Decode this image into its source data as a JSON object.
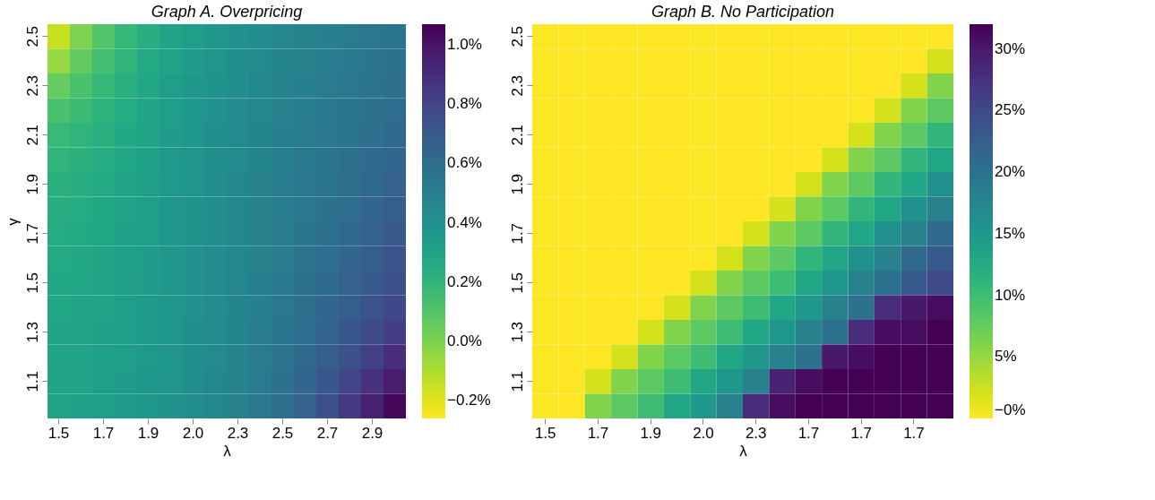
{
  "chart_data": [
    {
      "type": "heatmap",
      "title": "Graph A. Overpricing",
      "xlabel": "λ",
      "ylabel": "γ",
      "categories": [
        "1.5",
        null,
        "1.7",
        null,
        "1.9",
        null,
        "2.0",
        null,
        "2.3",
        null,
        "2.5",
        null,
        "2.7",
        null,
        "2.9",
        null
      ],
      "y_categories": [
        "2.5",
        null,
        "2.3",
        null,
        "2.1",
        null,
        "1.9",
        null,
        "1.7",
        null,
        "1.5",
        null,
        "1.3",
        null,
        "1.1",
        null
      ],
      "clim": [
        -0.26,
        1.07
      ],
      "cticks": [
        {
          "value": -0.2,
          "label": "−0.2%"
        },
        {
          "value": 0.0,
          "label": "0.0%"
        },
        {
          "value": 0.2,
          "label": "0.2%"
        },
        {
          "value": 0.4,
          "label": "0.4%"
        },
        {
          "value": 0.6,
          "label": "0.6%"
        },
        {
          "value": 0.8,
          "label": "0.8%"
        },
        {
          "value": 1.0,
          "label": "1.0%"
        }
      ],
      "cells": [
        [
          -0.15,
          0.0,
          0.1,
          0.18,
          0.24,
          0.29,
          0.33,
          0.37,
          0.4,
          0.43,
          0.46,
          0.48,
          0.5,
          0.52,
          0.54,
          0.56
        ],
        [
          -0.05,
          0.06,
          0.14,
          0.2,
          0.26,
          0.3,
          0.34,
          0.38,
          0.41,
          0.44,
          0.47,
          0.49,
          0.51,
          0.53,
          0.55,
          0.57
        ],
        [
          0.05,
          0.12,
          0.18,
          0.23,
          0.28,
          0.32,
          0.36,
          0.39,
          0.42,
          0.45,
          0.48,
          0.5,
          0.52,
          0.54,
          0.56,
          0.58
        ],
        [
          0.12,
          0.16,
          0.21,
          0.25,
          0.29,
          0.33,
          0.37,
          0.4,
          0.43,
          0.46,
          0.49,
          0.51,
          0.53,
          0.55,
          0.57,
          0.6
        ],
        [
          0.17,
          0.2,
          0.23,
          0.27,
          0.3,
          0.34,
          0.37,
          0.41,
          0.44,
          0.47,
          0.5,
          0.52,
          0.54,
          0.56,
          0.59,
          0.62
        ],
        [
          0.2,
          0.22,
          0.25,
          0.28,
          0.31,
          0.35,
          0.38,
          0.41,
          0.44,
          0.47,
          0.5,
          0.53,
          0.55,
          0.58,
          0.61,
          0.64
        ],
        [
          0.22,
          0.24,
          0.26,
          0.29,
          0.32,
          0.35,
          0.38,
          0.42,
          0.45,
          0.48,
          0.51,
          0.54,
          0.56,
          0.59,
          0.62,
          0.66
        ],
        [
          0.24,
          0.25,
          0.27,
          0.3,
          0.33,
          0.36,
          0.39,
          0.42,
          0.45,
          0.48,
          0.51,
          0.54,
          0.57,
          0.6,
          0.64,
          0.68
        ],
        [
          0.25,
          0.26,
          0.28,
          0.31,
          0.33,
          0.36,
          0.39,
          0.42,
          0.45,
          0.49,
          0.52,
          0.55,
          0.58,
          0.62,
          0.66,
          0.7
        ],
        [
          0.26,
          0.27,
          0.29,
          0.31,
          0.34,
          0.37,
          0.4,
          0.43,
          0.46,
          0.49,
          0.52,
          0.56,
          0.6,
          0.64,
          0.68,
          0.72
        ],
        [
          0.27,
          0.28,
          0.3,
          0.32,
          0.34,
          0.37,
          0.4,
          0.43,
          0.46,
          0.5,
          0.53,
          0.57,
          0.61,
          0.66,
          0.7,
          0.75
        ],
        [
          0.28,
          0.29,
          0.3,
          0.32,
          0.35,
          0.37,
          0.4,
          0.43,
          0.47,
          0.5,
          0.54,
          0.58,
          0.63,
          0.68,
          0.73,
          0.78
        ],
        [
          0.29,
          0.29,
          0.31,
          0.33,
          0.35,
          0.38,
          0.41,
          0.44,
          0.47,
          0.51,
          0.55,
          0.6,
          0.65,
          0.71,
          0.77,
          0.83
        ],
        [
          0.29,
          0.3,
          0.31,
          0.33,
          0.35,
          0.38,
          0.41,
          0.44,
          0.48,
          0.52,
          0.56,
          0.62,
          0.68,
          0.75,
          0.82,
          0.9
        ],
        [
          0.3,
          0.3,
          0.32,
          0.34,
          0.36,
          0.38,
          0.41,
          0.45,
          0.48,
          0.52,
          0.57,
          0.64,
          0.71,
          0.8,
          0.88,
          0.97
        ],
        [
          0.3,
          0.31,
          0.32,
          0.34,
          0.36,
          0.39,
          0.42,
          0.45,
          0.49,
          0.53,
          0.59,
          0.66,
          0.75,
          0.85,
          0.95,
          1.05
        ]
      ]
    },
    {
      "type": "heatmap",
      "title": "Graph B. No Participation",
      "xlabel": "λ",
      "categories": [
        "1.5",
        null,
        "1.7",
        null,
        "1.9",
        null,
        "2.0",
        null,
        "2.3",
        null,
        "1.7",
        null,
        "1.7",
        null,
        "1.7",
        null
      ],
      "y_categories": [
        "2.5",
        null,
        "2.3",
        null,
        "2.1",
        null,
        "1.9",
        null,
        "1.7",
        null,
        "1.5",
        null,
        "1.3",
        null,
        "1.1",
        null
      ],
      "clim": [
        0,
        32
      ],
      "cticks": [
        {
          "value": 0,
          "label": "−0%"
        },
        {
          "value": 5,
          "label": "5%"
        },
        {
          "value": 10,
          "label": "10%"
        },
        {
          "value": 15,
          "label": "15%"
        },
        {
          "value": 20,
          "label": "20%"
        },
        {
          "value": 25,
          "label": "25%"
        },
        {
          "value": 30,
          "label": "30%"
        }
      ],
      "cells": [
        [
          0,
          0,
          0,
          0,
          0,
          0,
          0,
          0,
          0,
          0,
          0,
          0,
          0,
          0,
          0,
          0
        ],
        [
          0,
          0,
          0,
          0,
          0,
          0,
          0,
          0,
          0,
          0,
          0,
          0,
          0,
          0,
          0,
          2
        ],
        [
          0,
          0,
          0,
          0,
          0,
          0,
          0,
          0,
          0,
          0,
          0,
          0,
          0,
          0,
          2,
          6
        ],
        [
          0,
          0,
          0,
          0,
          0,
          0,
          0,
          0,
          0,
          0,
          0,
          0,
          0,
          2,
          6,
          8
        ],
        [
          0,
          0,
          0,
          0,
          0,
          0,
          0,
          0,
          0,
          0,
          0,
          0,
          2,
          6,
          8,
          11
        ],
        [
          0,
          0,
          0,
          0,
          0,
          0,
          0,
          0,
          0,
          0,
          0,
          2,
          6,
          8,
          11,
          13
        ],
        [
          0,
          0,
          0,
          0,
          0,
          0,
          0,
          0,
          0,
          0,
          2,
          6,
          8,
          11,
          13,
          16
        ],
        [
          0,
          0,
          0,
          0,
          0,
          0,
          0,
          0,
          0,
          2,
          6,
          8,
          11,
          13,
          16,
          18
        ],
        [
          0,
          0,
          0,
          0,
          0,
          0,
          0,
          0,
          2,
          6,
          8,
          11,
          13,
          16,
          18,
          21
        ],
        [
          0,
          0,
          0,
          0,
          0,
          0,
          0,
          2,
          6,
          8,
          11,
          13,
          16,
          18,
          21,
          23
        ],
        [
          0,
          0,
          0,
          0,
          0,
          0,
          2,
          6,
          8,
          10,
          13,
          15,
          18,
          20,
          23,
          25
        ],
        [
          0,
          0,
          0,
          0,
          0,
          2,
          6,
          8,
          10,
          13,
          15,
          18,
          20,
          28,
          30,
          31
        ],
        [
          0,
          0,
          0,
          0,
          2,
          6,
          8,
          10,
          13,
          15,
          18,
          20,
          28,
          31,
          31,
          32
        ],
        [
          0,
          0,
          0,
          2,
          6,
          8,
          10,
          13,
          15,
          18,
          20,
          30,
          31,
          32,
          32,
          32
        ],
        [
          0,
          0,
          2,
          6,
          8,
          10,
          13,
          15,
          18,
          29,
          31,
          32,
          32,
          32,
          32,
          32
        ],
        [
          0,
          0,
          6,
          8,
          10,
          13,
          15,
          18,
          28,
          31,
          32,
          32,
          32,
          32,
          32,
          32
        ]
      ]
    }
  ]
}
